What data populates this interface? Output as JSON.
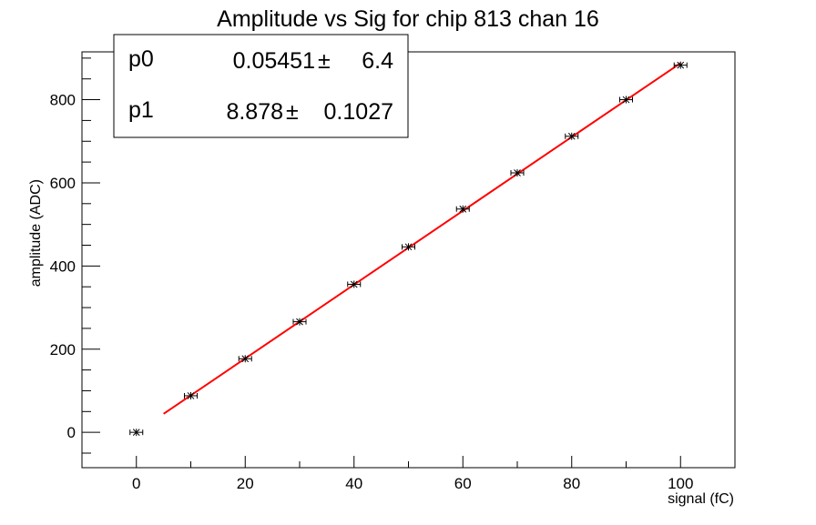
{
  "chart_data": {
    "type": "scatter",
    "title": "Amplitude vs Sig for chip 813 chan 16",
    "xlabel": "signal (fC)",
    "ylabel": "amplitude (ADC)",
    "xlim": [
      -10,
      110
    ],
    "ylim": [
      -85,
      915
    ],
    "x_ticks": [
      0,
      20,
      40,
      60,
      80,
      100
    ],
    "y_ticks": [
      0,
      200,
      400,
      600,
      800
    ],
    "x": [
      0,
      10,
      20,
      30,
      40,
      50,
      60,
      70,
      80,
      90,
      100
    ],
    "y": [
      0,
      88,
      177,
      266,
      356,
      446,
      537,
      624,
      712,
      800,
      883
    ],
    "fit": {
      "function": "pol1",
      "color": "#ff0000",
      "x_range": [
        5,
        100
      ],
      "p0": 0.05451,
      "p1": 8.878
    },
    "grid": false,
    "legend": "none",
    "marker_color": "#000000"
  },
  "stats_box": {
    "p0_label": "p0",
    "p0_value": "0.05451",
    "p0_pm": "±",
    "p0_error": "6.4",
    "p1_label": "p1",
    "p1_value": "8.878",
    "p1_pm": "±",
    "p1_error": "0.1027"
  }
}
